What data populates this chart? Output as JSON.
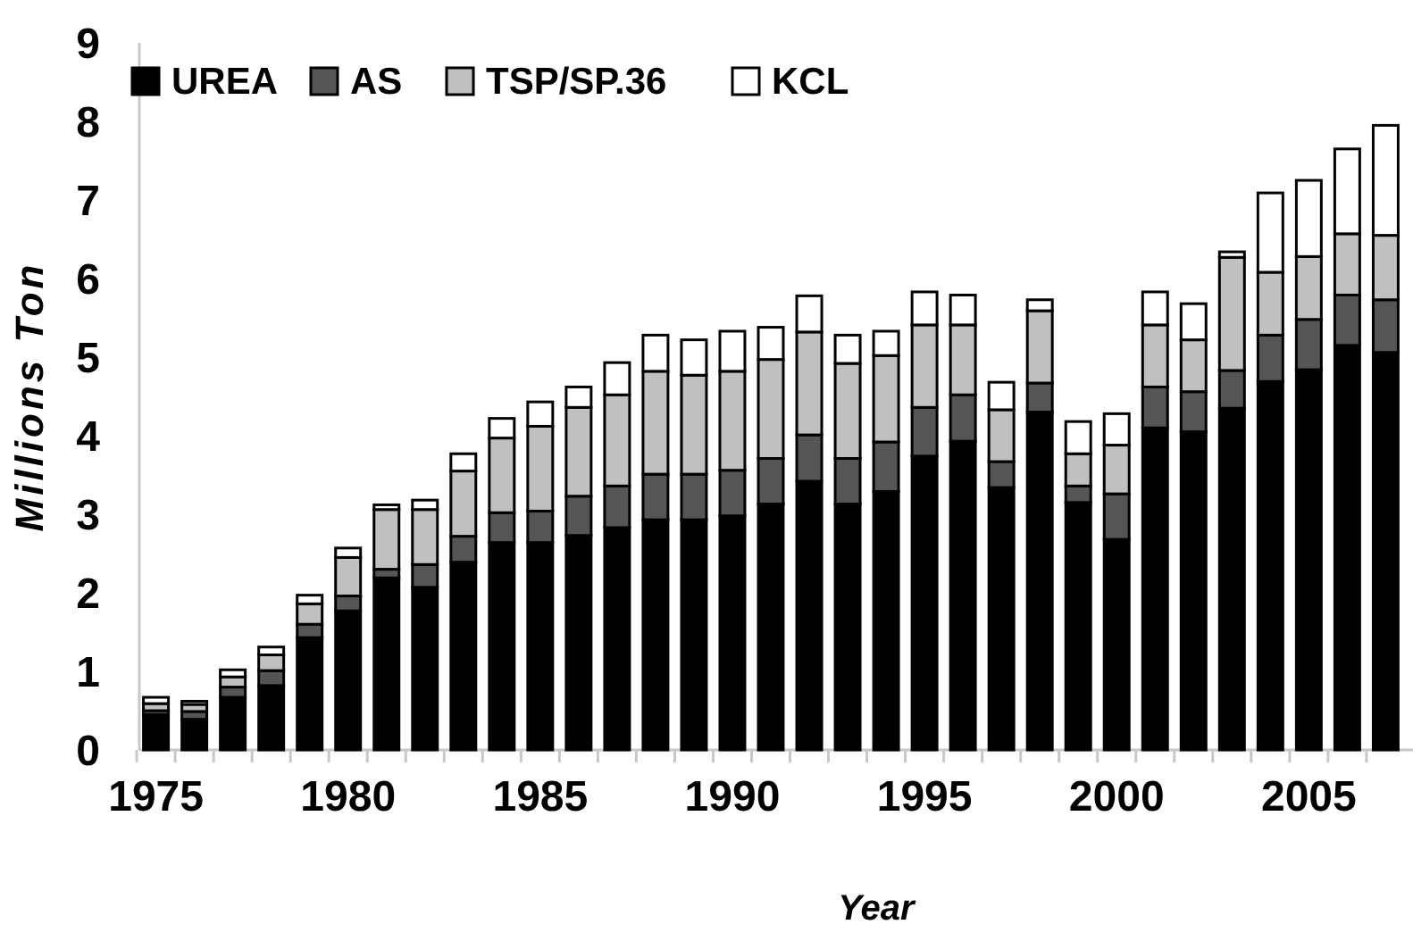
{
  "chart_data": {
    "type": "bar",
    "stacked": true,
    "xlabel": "Year",
    "ylabel": "Millions Ton",
    "categories": [
      "1975",
      null,
      null,
      null,
      null,
      "1980",
      null,
      null,
      null,
      null,
      "1985",
      null,
      null,
      null,
      null,
      "1990",
      null,
      null,
      null,
      null,
      "1995",
      null,
      null,
      null,
      null,
      "2000",
      null,
      null,
      null,
      null,
      "2005",
      null,
      null
    ],
    "series": [
      {
        "name": "UREA",
        "color": "#000000",
        "values": [
          0.45,
          0.39,
          0.67,
          0.82,
          1.43,
          1.77,
          2.19,
          2.07,
          2.39,
          2.64,
          2.64,
          2.73,
          2.83,
          2.93,
          2.93,
          2.98,
          3.13,
          3.42,
          3.13,
          3.29,
          3.74,
          3.93,
          3.34,
          4.3,
          3.15,
          2.68,
          4.1,
          4.05,
          4.35,
          4.69,
          4.84,
          5.15,
          5.06
        ]
      },
      {
        "name": "AS",
        "color": "#555555",
        "values": [
          0.05,
          0.1,
          0.13,
          0.19,
          0.17,
          0.19,
          0.11,
          0.29,
          0.33,
          0.38,
          0.4,
          0.5,
          0.53,
          0.58,
          0.58,
          0.58,
          0.58,
          0.59,
          0.58,
          0.63,
          0.62,
          0.59,
          0.33,
          0.37,
          0.21,
          0.58,
          0.52,
          0.51,
          0.48,
          0.59,
          0.64,
          0.64,
          0.67
        ]
      },
      {
        "name": "TSP/SP.36",
        "color": "#c0c0c0",
        "values": [
          0.09,
          0.09,
          0.13,
          0.2,
          0.26,
          0.49,
          0.76,
          0.7,
          0.83,
          0.95,
          1.08,
          1.13,
          1.16,
          1.31,
          1.26,
          1.26,
          1.26,
          1.31,
          1.21,
          1.1,
          1.05,
          0.89,
          0.66,
          0.92,
          0.41,
          0.62,
          0.79,
          0.66,
          1.44,
          0.8,
          0.8,
          0.78,
          0.82
        ]
      },
      {
        "name": "KCL",
        "color": "#ffffff",
        "values": [
          0.08,
          0.04,
          0.09,
          0.1,
          0.11,
          0.12,
          0.06,
          0.12,
          0.22,
          0.25,
          0.31,
          0.26,
          0.41,
          0.46,
          0.45,
          0.51,
          0.41,
          0.46,
          0.36,
          0.31,
          0.42,
          0.38,
          0.35,
          0.14,
          0.41,
          0.4,
          0.42,
          0.46,
          0.07,
          1.01,
          0.97,
          1.08,
          1.4
        ]
      }
    ],
    "ylim": [
      0,
      9
    ],
    "yticks": [
      0,
      1,
      2,
      3,
      4,
      5,
      6,
      7,
      8,
      9
    ],
    "grid": false,
    "legend": "top left"
  }
}
